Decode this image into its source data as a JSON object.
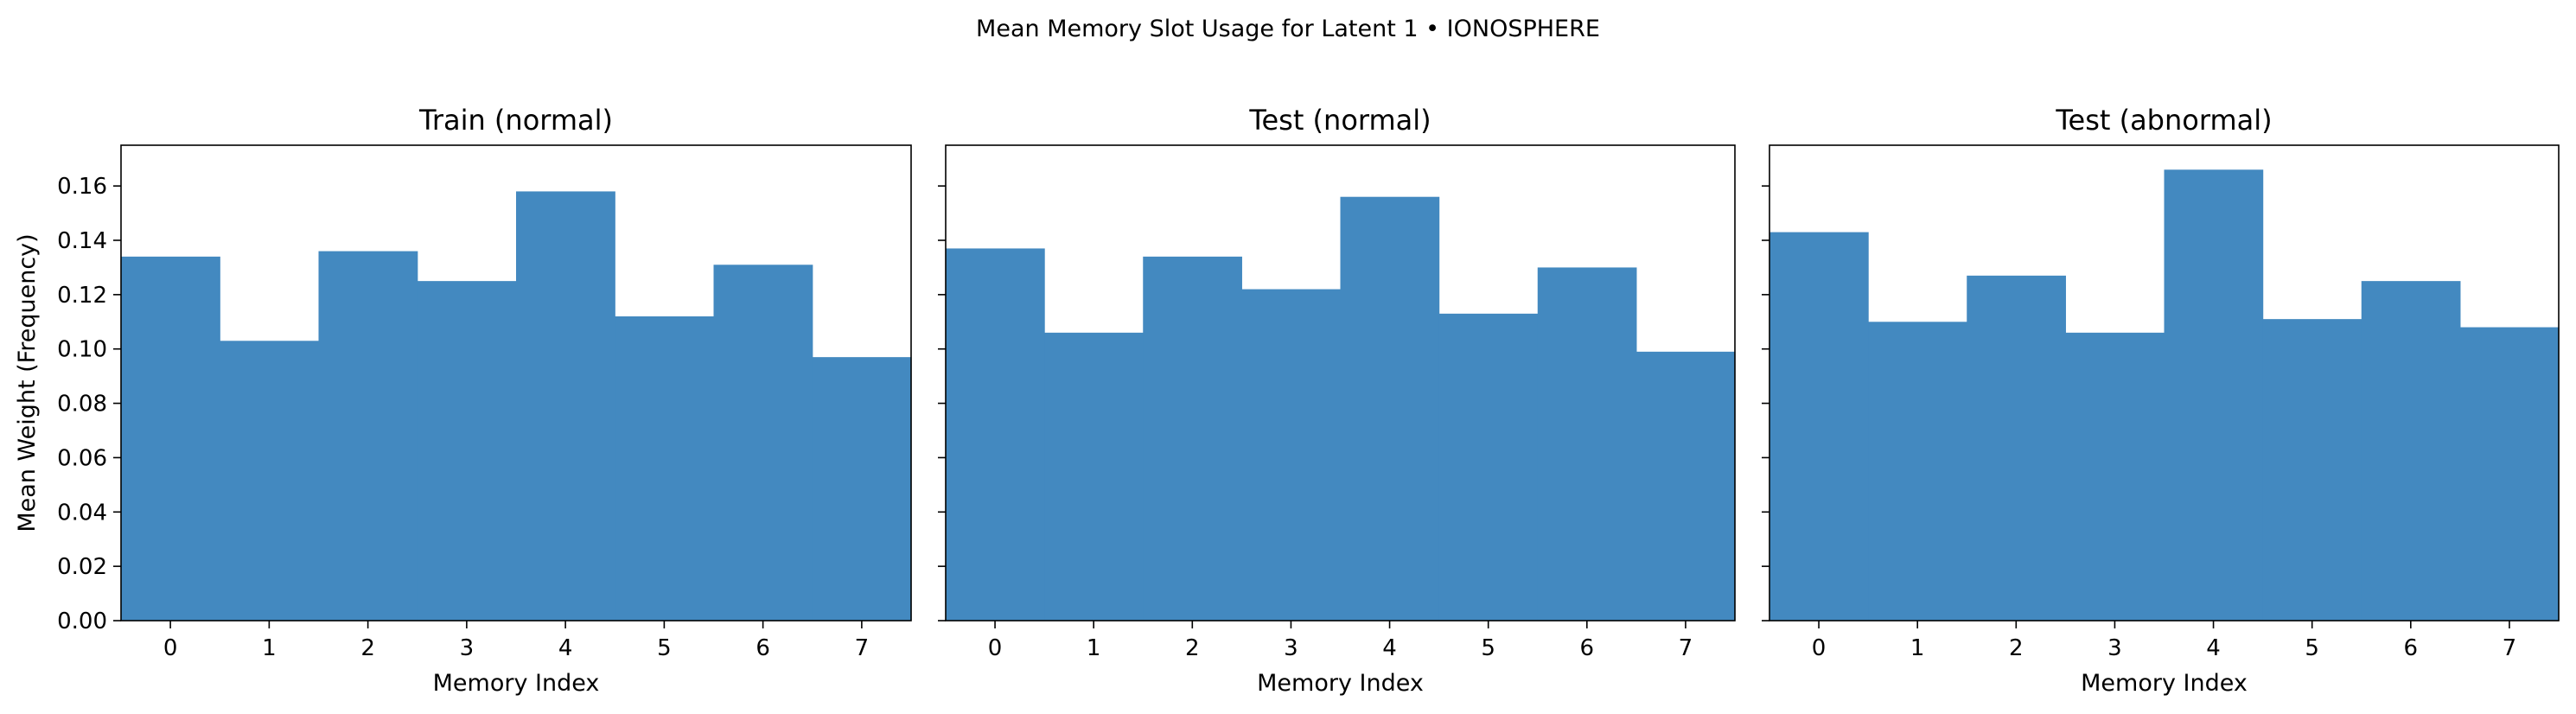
{
  "figure": {
    "title": "Mean Memory Slot Usage for Latent 1 • IONOSPHERE",
    "bar_color": "#4389c0",
    "ylabel": "Mean Weight (Frequency)"
  },
  "chart_data": [
    {
      "type": "bar",
      "title": "Train (normal)",
      "xlabel": "Memory Index",
      "ylabel": "Mean Weight (Frequency)",
      "categories": [
        "0",
        "1",
        "2",
        "3",
        "4",
        "5",
        "6",
        "7"
      ],
      "values": [
        0.134,
        0.103,
        0.136,
        0.125,
        0.158,
        0.112,
        0.131,
        0.097
      ],
      "ylim": [
        0,
        0.175
      ],
      "yticks": [
        "0.00",
        "0.02",
        "0.04",
        "0.06",
        "0.08",
        "0.10",
        "0.12",
        "0.14",
        "0.16"
      ],
      "grid": false
    },
    {
      "type": "bar",
      "title": "Test (normal)",
      "xlabel": "Memory Index",
      "categories": [
        "0",
        "1",
        "2",
        "3",
        "4",
        "5",
        "6",
        "7"
      ],
      "values": [
        0.137,
        0.106,
        0.134,
        0.122,
        0.156,
        0.113,
        0.13,
        0.099
      ],
      "ylim": [
        0,
        0.175
      ],
      "grid": false
    },
    {
      "type": "bar",
      "title": "Test (abnormal)",
      "xlabel": "Memory Index",
      "categories": [
        "0",
        "1",
        "2",
        "3",
        "4",
        "5",
        "6",
        "7"
      ],
      "values": [
        0.143,
        0.11,
        0.127,
        0.106,
        0.166,
        0.111,
        0.125,
        0.108
      ],
      "ylim": [
        0,
        0.175
      ],
      "grid": false
    }
  ]
}
